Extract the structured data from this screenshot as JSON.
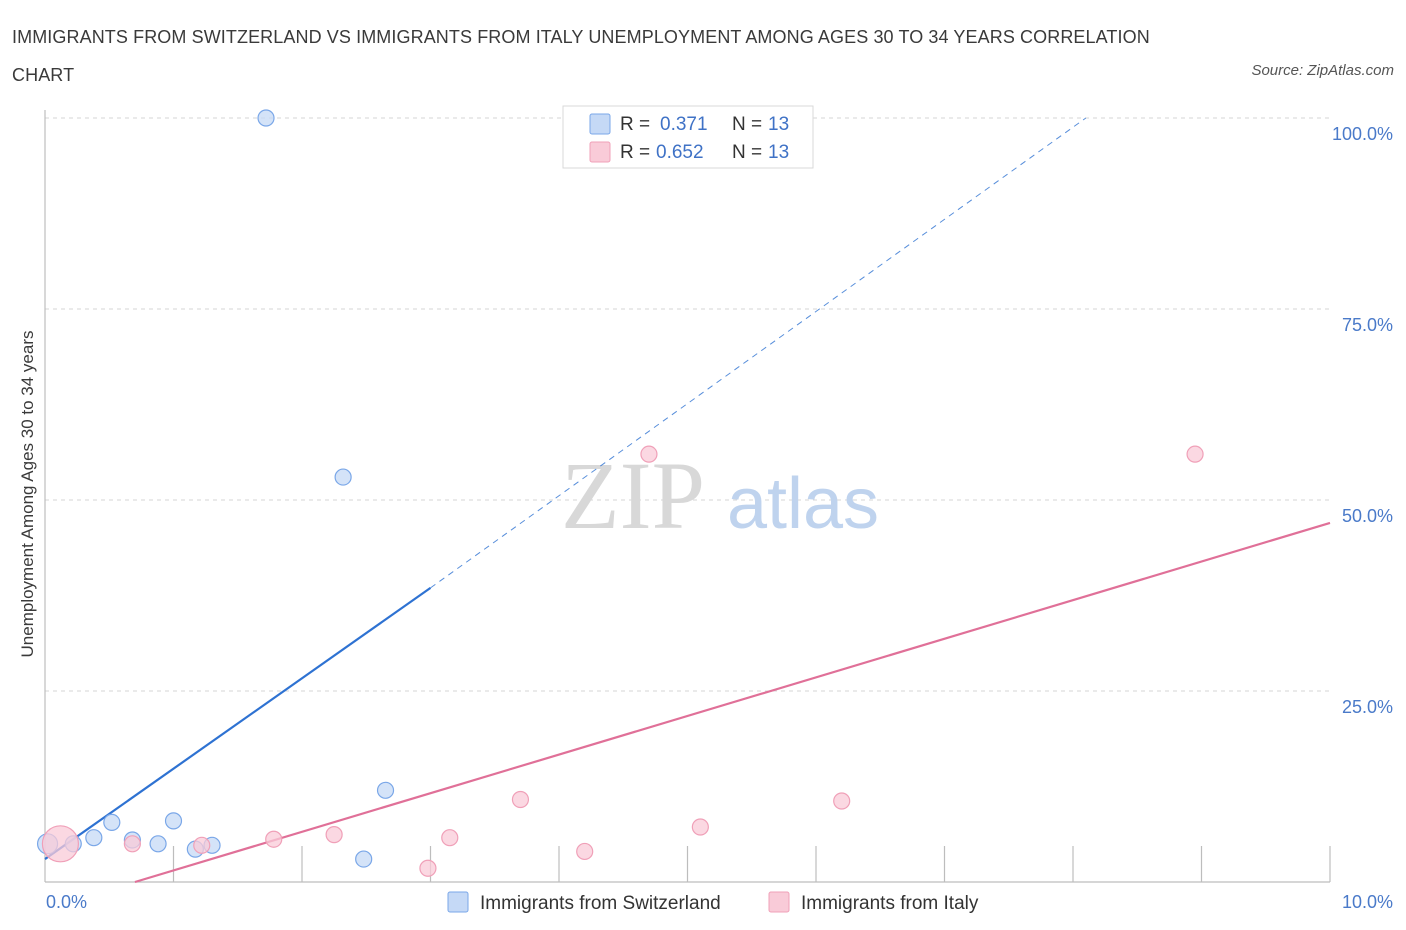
{
  "chart_data": {
    "type": "scatter",
    "title": "IMMIGRANTS FROM SWITZERLAND VS IMMIGRANTS FROM ITALY UNEMPLOYMENT AMONG AGES 30 TO 34 YEARS CORRELATION CHART",
    "source": "Source: ZipAtlas.com",
    "xlabel": "",
    "ylabel": "Unemployment Among Ages 30 to 34 years",
    "xlim": [
      0,
      10
    ],
    "ylim": [
      0,
      100
    ],
    "x_tick_labels": [
      "0.0%",
      "10.0%"
    ],
    "y_ticks": [
      25,
      50,
      75,
      100
    ],
    "y_tick_labels": [
      "25.0%",
      "50.0%",
      "75.0%",
      "100.0%"
    ],
    "grid": true,
    "watermark": {
      "zip": "ZIP",
      "atlas": "atlas"
    },
    "legend_top": {
      "r_label": "R =",
      "n_label": "N =",
      "entries": [
        {
          "r": "0.371",
          "n": "13"
        },
        {
          "r": "0.652",
          "n": "13"
        }
      ]
    },
    "series": [
      {
        "name": "Immigrants from Switzerland",
        "color": "#7aa7e8",
        "fill": "#c5d9f6",
        "line_color": "#2e72d2",
        "points": [
          {
            "x": 0.02,
            "y": 5.0,
            "size": 10
          },
          {
            "x": 0.22,
            "y": 5.0,
            "size": 8
          },
          {
            "x": 0.38,
            "y": 5.8,
            "size": 8
          },
          {
            "x": 0.52,
            "y": 7.8,
            "size": 8
          },
          {
            "x": 0.68,
            "y": 5.5,
            "size": 8
          },
          {
            "x": 0.88,
            "y": 5.0,
            "size": 8
          },
          {
            "x": 1.0,
            "y": 8.0,
            "size": 8
          },
          {
            "x": 1.17,
            "y": 4.3,
            "size": 8
          },
          {
            "x": 1.3,
            "y": 4.8,
            "size": 8
          },
          {
            "x": 1.72,
            "y": 100.0,
            "size": 8
          },
          {
            "x": 2.32,
            "y": 53.0,
            "size": 8
          },
          {
            "x": 2.48,
            "y": 3.0,
            "size": 8
          },
          {
            "x": 2.65,
            "y": 12.0,
            "size": 8
          }
        ],
        "trend": {
          "x0": 0.0,
          "y0": 3.0,
          "x1": 3.0,
          "y1": 38.5,
          "dash_x1": 8.1,
          "dash_y1": 100.0
        }
      },
      {
        "name": "Immigrants from Italy",
        "color": "#f0a0b8",
        "fill": "#f9cbd8",
        "line_color": "#e07098",
        "points": [
          {
            "x": 0.12,
            "y": 5.0,
            "size": 18
          },
          {
            "x": 0.68,
            "y": 5.0,
            "size": 8
          },
          {
            "x": 1.22,
            "y": 4.8,
            "size": 8
          },
          {
            "x": 1.78,
            "y": 5.6,
            "size": 8
          },
          {
            "x": 2.25,
            "y": 6.2,
            "size": 8
          },
          {
            "x": 2.98,
            "y": 1.8,
            "size": 8
          },
          {
            "x": 3.15,
            "y": 5.8,
            "size": 8
          },
          {
            "x": 3.7,
            "y": 10.8,
            "size": 8
          },
          {
            "x": 4.2,
            "y": 4.0,
            "size": 8
          },
          {
            "x": 4.7,
            "y": 56.0,
            "size": 8
          },
          {
            "x": 5.1,
            "y": 7.2,
            "size": 8
          },
          {
            "x": 6.2,
            "y": 10.6,
            "size": 8
          },
          {
            "x": 8.95,
            "y": 56.0,
            "size": 8
          }
        ],
        "trend": {
          "x0": 0.7,
          "y0": 0.0,
          "x1": 10.0,
          "y1": 47.0
        }
      }
    ]
  }
}
